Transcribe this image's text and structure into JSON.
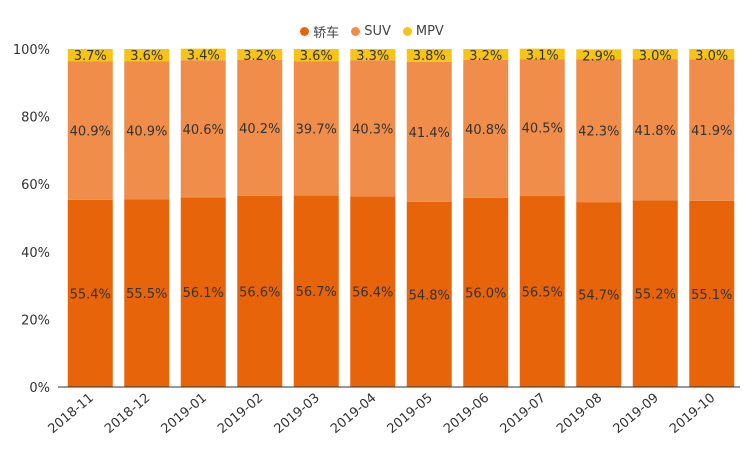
{
  "chart_data": {
    "type": "bar",
    "stacked": true,
    "categories": [
      "2018-11",
      "2018-12",
      "2019-01",
      "2019-02",
      "2019-03",
      "2019-04",
      "2019-05",
      "2019-06",
      "2019-07",
      "2019-08",
      "2019-09",
      "2019-10"
    ],
    "series": [
      {
        "name": "轿车",
        "color": "#E8640A",
        "values": [
          55.4,
          55.5,
          56.1,
          56.6,
          56.7,
          56.4,
          54.8,
          56.0,
          56.5,
          54.7,
          55.2,
          55.1
        ]
      },
      {
        "name": "SUV",
        "color": "#F08D4A",
        "values": [
          40.9,
          40.9,
          40.6,
          40.2,
          39.7,
          40.3,
          41.4,
          40.8,
          40.5,
          42.3,
          41.8,
          41.9
        ]
      },
      {
        "name": "MPV",
        "color": "#F5C416",
        "values": [
          3.7,
          3.6,
          3.4,
          3.2,
          3.6,
          3.3,
          3.8,
          3.2,
          3.1,
          2.9,
          3.0,
          3.0
        ]
      }
    ],
    "y_ticks": [
      "0%",
      "20%",
      "40%",
      "60%",
      "80%",
      "100%"
    ],
    "ylim": [
      0,
      100
    ],
    "title": "",
    "xlabel": "",
    "ylabel": "",
    "legend_position": "top",
    "grid": false
  }
}
